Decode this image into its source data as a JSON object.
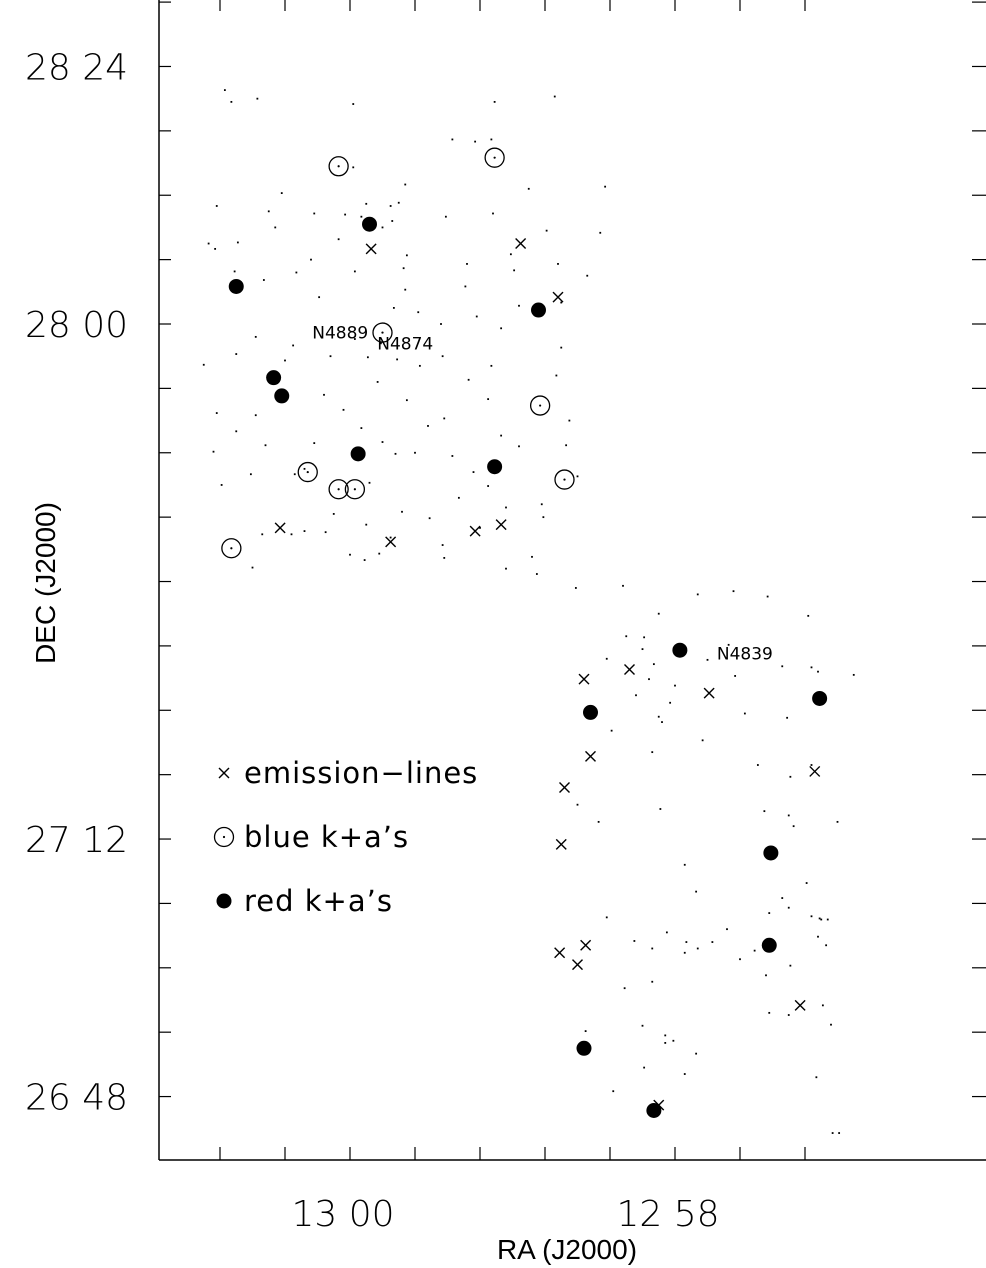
{
  "chart_data": {
    "type": "scatter",
    "xlabel": "RA (J2000)",
    "ylabel": "DEC (J2000)",
    "x_unit": "arcmin of RA offset (increasing to the left)",
    "x_ticks": [
      {
        "label": "13 00",
        "value": 0
      },
      {
        "label": "12 58",
        "value": 2
      }
    ],
    "y_ticks": [
      {
        "label": "28 24",
        "value": 84
      },
      {
        "label": "28 00",
        "value": 60
      },
      {
        "label": "27 12",
        "value": 12
      },
      {
        "label": "26 48",
        "value": -12
      }
    ],
    "xlim": [
      -1.0,
      3.0
    ],
    "ylim": [
      -18.0,
      90.0
    ],
    "legend": [
      {
        "symbol": "cross",
        "label": "emission−lines"
      },
      {
        "symbol": "open-circle",
        "label": "blue k+a’s"
      },
      {
        "symbol": "filled-circle",
        "label": "red k+a’s"
      }
    ],
    "annotations": [
      {
        "text": "N4889",
        "x": -0.06,
        "y": 59.2
      },
      {
        "text": "N4874",
        "x": 0.34,
        "y": 58.2
      },
      {
        "text": "N4839",
        "x": 2.43,
        "y": 29.3
      }
    ],
    "series": [
      {
        "name": "emission−lines",
        "symbol": "cross",
        "points": [
          [
            0.13,
            67.0
          ],
          [
            1.05,
            67.5
          ],
          [
            1.28,
            62.5
          ],
          [
            -0.43,
            41.0
          ],
          [
            0.25,
            39.7
          ],
          [
            0.77,
            40.7
          ],
          [
            0.93,
            41.3
          ],
          [
            1.44,
            26.9
          ],
          [
            1.72,
            27.8
          ],
          [
            2.21,
            25.6
          ],
          [
            1.48,
            19.7
          ],
          [
            1.32,
            16.8
          ],
          [
            1.3,
            11.5
          ],
          [
            2.86,
            18.3
          ],
          [
            1.29,
            1.4
          ],
          [
            1.4,
            0.3
          ],
          [
            1.45,
            2.1
          ],
          [
            2.77,
            -3.5
          ],
          [
            1.9,
            -12.8
          ]
        ]
      },
      {
        "name": "blue k+a’s",
        "symbol": "open-circle",
        "points": [
          [
            -0.07,
            74.7
          ],
          [
            0.89,
            75.5
          ],
          [
            0.2,
            59.2
          ],
          [
            1.17,
            52.4
          ],
          [
            -0.26,
            46.2
          ],
          [
            -0.07,
            44.6
          ],
          [
            0.03,
            44.6
          ],
          [
            1.32,
            45.5
          ],
          [
            -0.73,
            39.1
          ]
        ]
      },
      {
        "name": "red k+a’s",
        "symbol": "filled-circle",
        "points": [
          [
            0.12,
            69.3
          ],
          [
            -0.7,
            63.5
          ],
          [
            1.16,
            61.3
          ],
          [
            -0.47,
            55.0
          ],
          [
            -0.42,
            53.3
          ],
          [
            0.05,
            47.9
          ],
          [
            0.89,
            46.7
          ],
          [
            2.03,
            29.6
          ],
          [
            1.48,
            23.8
          ],
          [
            2.89,
            25.1
          ],
          [
            2.59,
            10.7
          ],
          [
            2.58,
            2.1
          ],
          [
            1.44,
            -7.5
          ],
          [
            1.87,
            -13.3
          ]
        ]
      },
      {
        "name": "",
        "symbol": "dot",
        "points": [
          [
            -0.77,
            81.8
          ],
          [
            -0.73,
            80.7
          ],
          [
            -0.57,
            81.0
          ],
          [
            0.02,
            80.5
          ],
          [
            0.89,
            80.7
          ],
          [
            1.26,
            81.2
          ],
          [
            0.63,
            77.2
          ],
          [
            0.77,
            77.0
          ],
          [
            0.87,
            77.2
          ],
          [
            0.02,
            74.6
          ],
          [
            0.34,
            73.0
          ],
          [
            1.1,
            72.6
          ],
          [
            1.57,
            72.8
          ],
          [
            -0.42,
            72.2
          ],
          [
            -0.82,
            71.0
          ],
          [
            -0.5,
            70.5
          ],
          [
            0.1,
            71.2
          ],
          [
            0.25,
            71.0
          ],
          [
            0.3,
            71.3
          ],
          [
            0.07,
            70.0
          ],
          [
            0.59,
            70.0
          ],
          [
            0.88,
            70.3
          ],
          [
            -0.22,
            70.3
          ],
          [
            -0.03,
            70.2
          ],
          [
            0.26,
            69.6
          ],
          [
            0.2,
            69.0
          ],
          [
            1.21,
            68.7
          ],
          [
            1.54,
            68.5
          ],
          [
            -0.46,
            69.0
          ],
          [
            -0.07,
            67.9
          ],
          [
            -0.87,
            67.5
          ],
          [
            -0.83,
            67.0
          ],
          [
            -0.69,
            67.6
          ],
          [
            0.35,
            66.4
          ],
          [
            -0.24,
            66.0
          ],
          [
            0.99,
            66.5
          ],
          [
            -0.71,
            64.9
          ],
          [
            0.33,
            65.2
          ],
          [
            0.72,
            65.6
          ],
          [
            1.01,
            65.0
          ],
          [
            1.28,
            65.6
          ],
          [
            1.46,
            64.5
          ],
          [
            -0.53,
            64.1
          ],
          [
            -0.33,
            64.8
          ],
          [
            0.03,
            64.9
          ],
          [
            0.34,
            63.2
          ],
          [
            0.71,
            63.5
          ],
          [
            -0.19,
            62.5
          ],
          [
            0.42,
            61.1
          ],
          [
            1.3,
            62.0
          ],
          [
            0.78,
            60.7
          ],
          [
            1.04,
            61.7
          ],
          [
            0.56,
            60.0
          ],
          [
            0.93,
            59.6
          ],
          [
            -0.58,
            58.8
          ],
          [
            0.19,
            58.2
          ],
          [
            -0.35,
            58.0
          ],
          [
            1.3,
            57.8
          ],
          [
            -0.7,
            57.2
          ],
          [
            -0.4,
            56.6
          ],
          [
            0.11,
            56.9
          ],
          [
            0.29,
            56.7
          ],
          [
            0.43,
            56.1
          ],
          [
            0.57,
            57.0
          ],
          [
            -0.12,
            57.0
          ],
          [
            -0.9,
            56.2
          ],
          [
            -0.46,
            54.6
          ],
          [
            0.17,
            54.6
          ],
          [
            0.73,
            54.8
          ],
          [
            1.27,
            55.2
          ],
          [
            -0.16,
            53.4
          ],
          [
            0.85,
            53.0
          ],
          [
            0.35,
            52.9
          ],
          [
            -0.82,
            51.7
          ],
          [
            -0.58,
            51.5
          ],
          [
            -0.04,
            52.0
          ],
          [
            0.58,
            51.2
          ],
          [
            1.35,
            51.0
          ],
          [
            0.07,
            50.3
          ],
          [
            0.48,
            50.5
          ],
          [
            -0.7,
            50.0
          ],
          [
            0.93,
            49.6
          ],
          [
            0.2,
            49.0
          ],
          [
            -0.22,
            48.9
          ],
          [
            0.4,
            48.0
          ],
          [
            1.33,
            48.7
          ],
          [
            1.04,
            48.6
          ],
          [
            -0.84,
            48.1
          ],
          [
            -0.52,
            48.7
          ],
          [
            0.28,
            47.9
          ],
          [
            0.63,
            47.7
          ],
          [
            -0.28,
            46.5
          ],
          [
            -0.61,
            46.0
          ],
          [
            0.76,
            46.2
          ],
          [
            0.12,
            45.2
          ],
          [
            0.85,
            44.9
          ],
          [
            1.4,
            45.8
          ],
          [
            -0.79,
            45.0
          ],
          [
            -0.34,
            46.0
          ],
          [
            0.67,
            43.8
          ],
          [
            1.18,
            43.2
          ],
          [
            -0.1,
            42.3
          ],
          [
            0.32,
            42.5
          ],
          [
            0.96,
            42.9
          ],
          [
            1.19,
            42.0
          ],
          [
            0.1,
            41.3
          ],
          [
            0.49,
            41.9
          ],
          [
            0.8,
            41.0
          ],
          [
            -0.54,
            40.4
          ],
          [
            -0.36,
            40.4
          ],
          [
            -0.28,
            40.7
          ],
          [
            -0.15,
            40.6
          ],
          [
            0.25,
            40.1
          ],
          [
            0.0,
            38.5
          ],
          [
            0.18,
            38.6
          ],
          [
            -0.6,
            37.3
          ],
          [
            0.58,
            38.2
          ],
          [
            1.12,
            38.3
          ],
          [
            1.15,
            36.7
          ],
          [
            0.96,
            37.2
          ],
          [
            1.39,
            35.4
          ],
          [
            1.68,
            35.6
          ],
          [
            2.14,
            34.8
          ],
          [
            2.36,
            35.1
          ],
          [
            2.57,
            34.6
          ],
          [
            2.82,
            32.8
          ],
          [
            1.9,
            33.0
          ],
          [
            1.7,
            30.9
          ],
          [
            1.81,
            30.8
          ],
          [
            2.33,
            30.1
          ],
          [
            2.2,
            28.7
          ],
          [
            1.8,
            29.7
          ],
          [
            2.66,
            28.1
          ],
          [
            1.58,
            28.8
          ],
          [
            1.87,
            28.3
          ],
          [
            1.84,
            26.9
          ],
          [
            2.0,
            26.3
          ],
          [
            2.37,
            27.2
          ],
          [
            1.76,
            25.4
          ],
          [
            2.84,
            28.0
          ],
          [
            3.1,
            27.3
          ],
          [
            2.88,
            27.6
          ],
          [
            1.97,
            24.7
          ],
          [
            1.92,
            22.9
          ],
          [
            1.61,
            22.1
          ],
          [
            2.17,
            21.2
          ],
          [
            1.86,
            20.1
          ],
          [
            1.9,
            23.4
          ],
          [
            2.43,
            23.7
          ],
          [
            2.69,
            23.3
          ],
          [
            2.51,
            18.9
          ],
          [
            2.84,
            18.9
          ],
          [
            1.4,
            15.2
          ],
          [
            1.53,
            13.6
          ],
          [
            1.91,
            14.8
          ],
          [
            2.55,
            14.6
          ],
          [
            2.7,
            14.2
          ],
          [
            2.71,
            17.8
          ],
          [
            3.0,
            13.6
          ],
          [
            2.73,
            13.2
          ],
          [
            2.06,
            9.6
          ],
          [
            2.13,
            7.1
          ],
          [
            2.58,
            5.1
          ],
          [
            2.7,
            5.6
          ],
          [
            2.84,
            4.8
          ],
          [
            2.94,
            4.5
          ],
          [
            2.81,
            7.9
          ],
          [
            2.89,
            4.6
          ],
          [
            2.9,
            4.5
          ],
          [
            2.32,
            3.6
          ],
          [
            2.93,
            2.1
          ],
          [
            2.66,
            6.5
          ],
          [
            2.56,
            -0.7
          ],
          [
            2.88,
            2.9
          ],
          [
            1.58,
            4.7
          ],
          [
            1.75,
            2.5
          ],
          [
            1.86,
            1.8
          ],
          [
            1.95,
            3.3
          ],
          [
            2.06,
            1.4
          ],
          [
            2.07,
            2.4
          ],
          [
            2.23,
            2.4
          ],
          [
            2.4,
            0.8
          ],
          [
            2.49,
            1.6
          ],
          [
            2.14,
            1.8
          ],
          [
            2.71,
            0.2
          ],
          [
            1.69,
            -1.9
          ],
          [
            1.86,
            -1.3
          ],
          [
            1.8,
            -5.4
          ],
          [
            1.94,
            -6.3
          ],
          [
            2.58,
            -4.2
          ],
          [
            2.7,
            -4.4
          ],
          [
            2.91,
            -3.5
          ],
          [
            2.96,
            -5.3
          ],
          [
            1.94,
            -7.0
          ],
          [
            2.13,
            -8.0
          ],
          [
            1.81,
            -9.3
          ],
          [
            2.06,
            -9.9
          ],
          [
            1.62,
            -11.5
          ],
          [
            2.87,
            -10.2
          ],
          [
            2.97,
            -15.4
          ],
          [
            3.01,
            -15.4
          ],
          [
            1.45,
            -5.9
          ],
          [
            1.99,
            -6.8
          ],
          [
            0.09,
            38.0
          ],
          [
            0.57,
            39.4
          ],
          [
            0.03,
            58.6
          ],
          [
            0.87,
            56.1
          ],
          [
            0.27,
            61.5
          ]
        ]
      }
    ]
  }
}
